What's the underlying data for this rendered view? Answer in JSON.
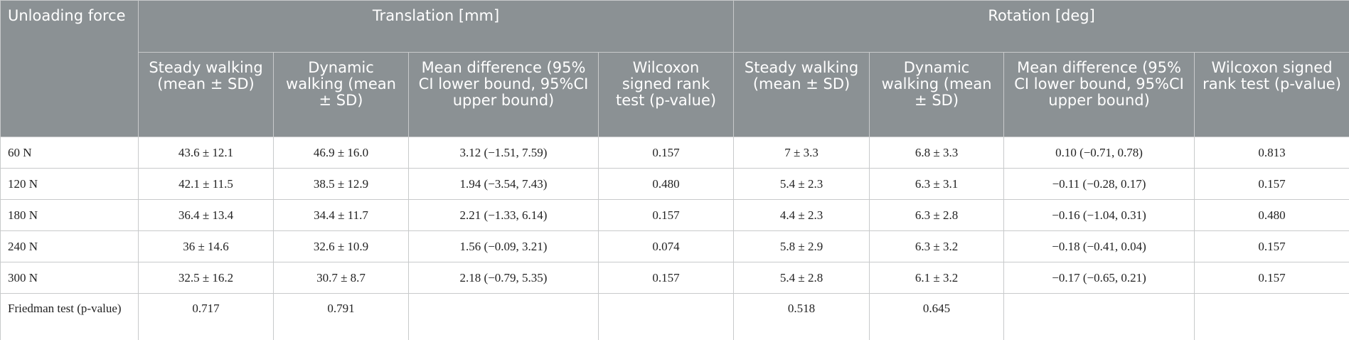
{
  "table": {
    "corner": "Unloading force",
    "groups": [
      "Translation [mm]",
      "Rotation [deg]"
    ],
    "columns": [
      "Steady walking (mean ± SD)",
      "Dynamic walking (mean ± SD)",
      "Mean difference (95% CI lower bound, 95%CI upper bound)",
      "Wilcoxon signed rank test (p-value)",
      "Steady walking (mean ± SD)",
      "Dynamic walking (mean ± SD)",
      "Mean difference (95% CI lower bound, 95%CI upper bound)",
      "Wilcoxon signed rank test (p-value)"
    ],
    "rows": [
      [
        "60 N",
        "43.6 ± 12.1",
        "46.9 ± 16.0",
        "3.12 (−1.51, 7.59)",
        "0.157",
        "7 ± 3.3",
        "6.8 ± 3.3",
        "0.10 (−0.71, 0.78)",
        "0.813"
      ],
      [
        "120 N",
        "42.1 ± 11.5",
        "38.5 ± 12.9",
        "1.94 (−3.54, 7.43)",
        "0.480",
        "5.4 ± 2.3",
        "6.3 ± 3.1",
        "−0.11 (−0.28, 0.17)",
        "0.157"
      ],
      [
        "180 N",
        "36.4 ± 13.4",
        "34.4 ± 11.7",
        "2.21 (−1.33, 6.14)",
        "0.157",
        "4.4 ± 2.3",
        "6.3 ± 2.8",
        "−0.16 (−1.04, 0.31)",
        "0.480"
      ],
      [
        "240 N",
        "36 ± 14.6",
        "32.6 ± 10.9",
        "1.56 (−0.09, 3.21)",
        "0.074",
        "5.8 ± 2.9",
        "6.3 ± 3.2",
        "−0.18 (−0.41, 0.04)",
        "0.157"
      ],
      [
        "300 N",
        "32.5 ± 16.2",
        "30.7 ± 8.7",
        "2.18 (−0.79, 5.35)",
        "0.157",
        "5.4 ± 2.8",
        "6.1 ± 3.2",
        "−0.17 (−0.65, 0.21)",
        "0.157"
      ],
      [
        "Friedman test (p-value)",
        "0.717",
        "0.791",
        null,
        null,
        "0.518",
        "0.645",
        null,
        null
      ]
    ]
  }
}
